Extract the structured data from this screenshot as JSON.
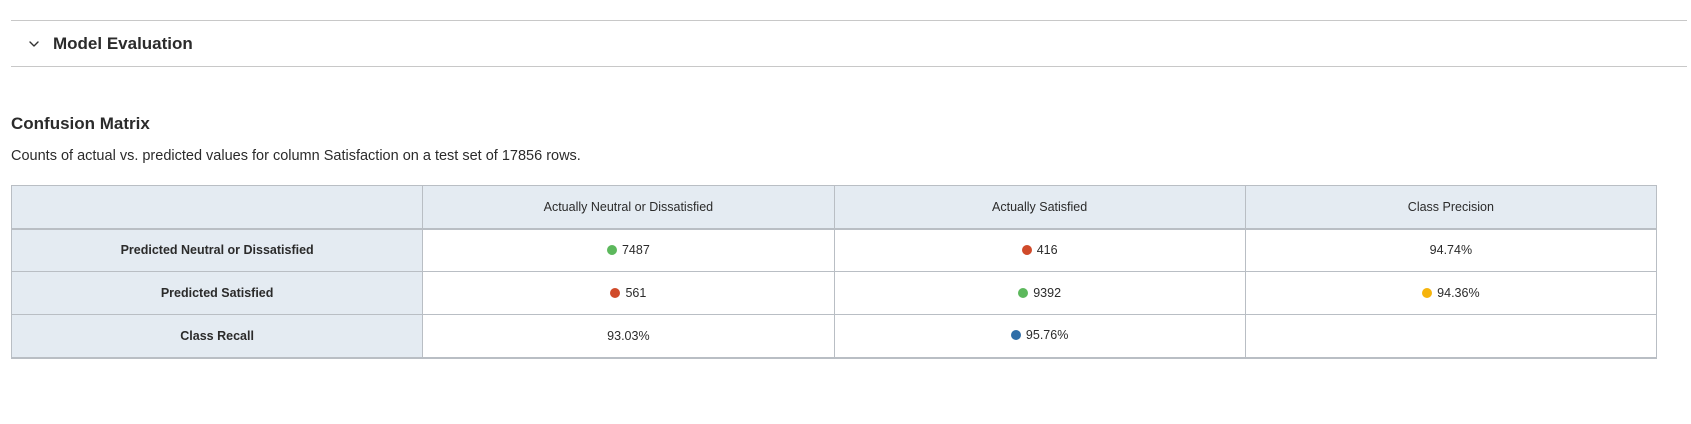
{
  "section": {
    "title": "Model Evaluation",
    "toggle_icon": "chevron-down-icon"
  },
  "matrix": {
    "title": "Confusion Matrix",
    "description": "Counts of actual vs. predicted values for column Satisfaction on a test set of 17856 rows.",
    "columns": [
      "",
      "Actually Neutral or Dissatisfied",
      "Actually Satisfied",
      "Class Precision"
    ],
    "rows": [
      {
        "label": "Predicted Neutral or Dissatisfied",
        "cells": [
          {
            "value": "7487",
            "dot": "#5cb85c"
          },
          {
            "value": "416",
            "dot": "#d04a2a"
          },
          {
            "value": "94.74%",
            "dot": null
          }
        ]
      },
      {
        "label": "Predicted Satisfied",
        "cells": [
          {
            "value": "561",
            "dot": "#d04a2a"
          },
          {
            "value": "9392",
            "dot": "#5cb85c"
          },
          {
            "value": "94.36%",
            "dot": "#f6b40c"
          }
        ]
      },
      {
        "label": "Class Recall",
        "cells": [
          {
            "value": "93.03%",
            "dot": null
          },
          {
            "value": "95.76%",
            "dot": "#2f6ea8"
          },
          {
            "value": "",
            "dot": null
          }
        ]
      }
    ]
  },
  "colors": {
    "correct": "#5cb85c",
    "incorrect": "#d04a2a",
    "precision_highlight": "#f6b40c",
    "recall_highlight": "#2f6ea8",
    "header_bg": "#e4ebf2"
  }
}
